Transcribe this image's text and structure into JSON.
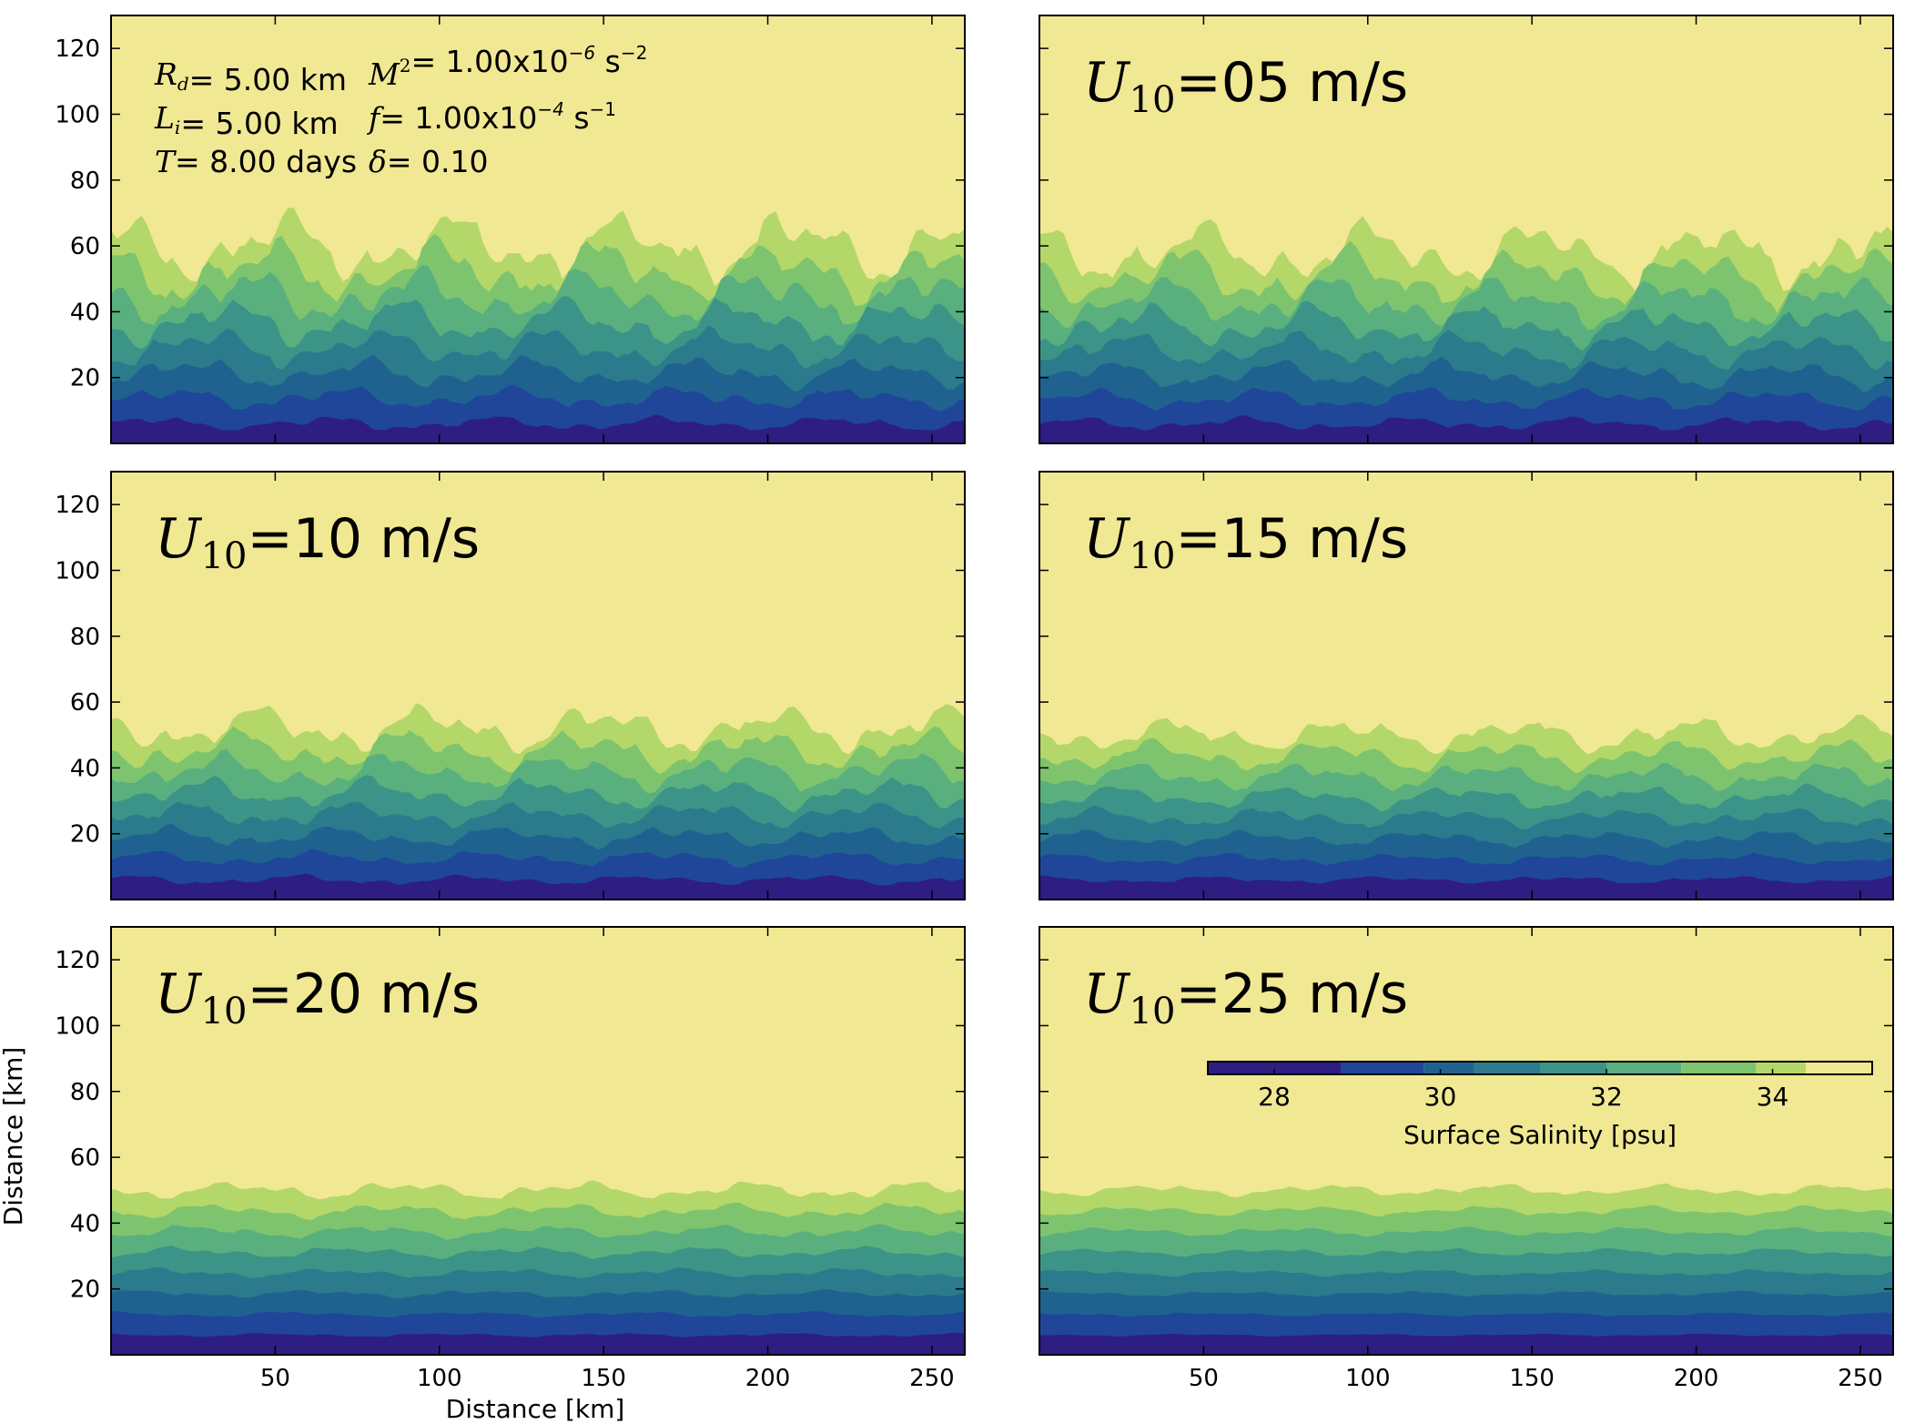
{
  "chart_data": {
    "type": "heatmap",
    "description_kind": "filled contour panels of surface salinity",
    "xlabel": "Distance [km]",
    "ylabel": "Distance [km]",
    "xlim": [
      0,
      260
    ],
    "ylim": [
      0,
      130
    ],
    "xticks": [
      "50",
      "100",
      "150",
      "200",
      "250"
    ],
    "yticks": [
      "20",
      "40",
      "60",
      "80",
      "100",
      "120"
    ],
    "grid": false,
    "colorbar": {
      "label": "Surface Salinity [psu]",
      "ticks": [
        "28",
        "30",
        "32",
        "34"
      ],
      "range": [
        27.2,
        35.2
      ],
      "levels": [
        27.2,
        28.8,
        29.8,
        30.4,
        31.2,
        32.0,
        32.9,
        33.8,
        34.4,
        35.2
      ],
      "colors": [
        "#2e1e82",
        "#1f4699",
        "#1f6290",
        "#2b7b8c",
        "#3b9487",
        "#5aaf7e",
        "#7ec46f",
        "#b4d769",
        "#f1e893"
      ]
    },
    "parameters": [
      {
        "symbol": "R",
        "sub": "d",
        "text": "= 5.00 km"
      },
      {
        "symbol": "M",
        "sup": "2",
        "text": "= 1.00x10",
        "exp": "−6",
        "unit": " s",
        "unit_exp": "−2"
      },
      {
        "symbol": "L",
        "sub": "i",
        "text": "= 5.00 km"
      },
      {
        "symbol": "f",
        "text": "= 1.00x10",
        "exp": "−4",
        "unit": " s",
        "unit_exp": "−1"
      },
      {
        "symbol": "T",
        "text": "= 8.00 days"
      },
      {
        "symbol": "δ",
        "text": "= 0.10"
      }
    ],
    "panels": [
      {
        "wind_label": "U",
        "sub": "10",
        "value": "",
        "front_km": 60,
        "amp": 12
      },
      {
        "wind_label": "U",
        "sub": "10",
        "value": "=05 m/s",
        "front_km": 58,
        "amp": 11
      },
      {
        "wind_label": "U",
        "sub": "10",
        "value": "=10 m/s",
        "front_km": 52,
        "amp": 8
      },
      {
        "wind_label": "U",
        "sub": "10",
        "value": "=15 m/s",
        "front_km": 50,
        "amp": 6
      },
      {
        "wind_label": "U",
        "sub": "10",
        "value": "=20 m/s",
        "front_km": 50,
        "amp": 3
      },
      {
        "wind_label": "U",
        "sub": "10",
        "value": "=25 m/s",
        "front_km": 50,
        "amp": 2
      }
    ]
  }
}
